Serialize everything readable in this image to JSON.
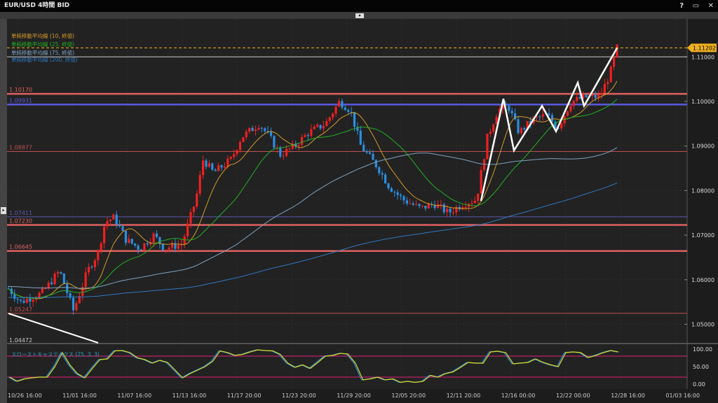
{
  "window": {
    "title": "EUR/USD 4時間 BID",
    "help": "?",
    "maximize": "▭",
    "close": "✕",
    "collapse": "▾",
    "expand": "▸"
  },
  "legend": [
    {
      "label": "単純移動平均線 (10, 終値)",
      "color": "#d49a2a",
      "period": 10
    },
    {
      "label": "単純移動平均線 (25, 終値)",
      "color": "#22b022",
      "period": 25
    },
    {
      "label": "単純移動平均線 (75, 終値)",
      "color": "#7fa2c0",
      "period": 75
    },
    {
      "label": "単純移動平均線 (200, 終値)",
      "color": "#2f78c0",
      "period": 200
    }
  ],
  "chart_data": {
    "type": "candlestick",
    "symbol": "EUR/USD",
    "timeframe": "4時間",
    "side": "BID",
    "y_axis": {
      "range": [
        1.044,
        1.118
      ],
      "ticks": [
        "1.11000",
        "1.10000",
        "1.09000",
        "1.08000",
        "1.07000",
        "1.06000",
        "1.05000"
      ]
    },
    "x_axis": {
      "ticks": [
        "10/26 16:00",
        "11/01 16:00",
        "11/07 16:00",
        "11/13 16:00",
        "11/17 20:00",
        "11/23 20:00",
        "11/29 20:00",
        "12/05 20:00",
        "12/11 20:00",
        "12/16 00:00",
        "12/22 00:00",
        "12/28 16:00",
        "01/03 16:00"
      ]
    },
    "close_path": [
      [
        0,
        1.058
      ],
      [
        0.02,
        1.055
      ],
      [
        0.055,
        1.057
      ],
      [
        0.084,
        1.062
      ],
      [
        0.107,
        1.053
      ],
      [
        0.13,
        1.062
      ],
      [
        0.147,
        1.066
      ],
      [
        0.159,
        1.073
      ],
      [
        0.174,
        1.074
      ],
      [
        0.193,
        1.069
      ],
      [
        0.216,
        1.067
      ],
      [
        0.239,
        1.07
      ],
      [
        0.256,
        1.067
      ],
      [
        0.285,
        1.068
      ],
      [
        0.308,
        1.078
      ],
      [
        0.32,
        1.087
      ],
      [
        0.337,
        1.084
      ],
      [
        0.366,
        1.087
      ],
      [
        0.383,
        1.092
      ],
      [
        0.412,
        1.095
      ],
      [
        0.429,
        1.092
      ],
      [
        0.447,
        1.088
      ],
      [
        0.47,
        1.09
      ],
      [
        0.493,
        1.093
      ],
      [
        0.521,
        1.095
      ],
      [
        0.544,
        1.1
      ],
      [
        0.562,
        1.098
      ],
      [
        0.579,
        1.09
      ],
      [
        0.608,
        1.085
      ],
      [
        0.625,
        1.081
      ],
      [
        0.648,
        1.078
      ],
      [
        0.677,
        1.076
      ],
      [
        0.7,
        1.077
      ],
      [
        0.723,
        1.075
      ],
      [
        0.746,
        1.077
      ],
      [
        0.769,
        1.078
      ],
      [
        0.787,
        1.092
      ],
      [
        0.804,
        1.098
      ],
      [
        0.821,
        1.099
      ],
      [
        0.839,
        1.093
      ],
      [
        0.862,
        1.096
      ],
      [
        0.885,
        1.097
      ],
      [
        0.902,
        1.094
      ],
      [
        0.925,
        1.1
      ],
      [
        0.948,
        1.101
      ],
      [
        0.971,
        1.101
      ],
      [
        0.988,
        1.106
      ],
      [
        1,
        1.112
      ]
    ],
    "current_price": "1.11202",
    "horizontal_lines": [
      {
        "value": "1.11000",
        "color": "#c8c8c8",
        "label_shown": false,
        "weight": "thin"
      },
      {
        "value": "1.10170",
        "color": "#e06060",
        "label_shown": true,
        "weight": "thick"
      },
      {
        "value": "1.09931",
        "color": "#5a5ae0",
        "label_shown": true,
        "weight": "thick"
      },
      {
        "value": "1.08877",
        "color": "#c05050",
        "label_shown": true,
        "weight": "thin"
      },
      {
        "value": "1.07411",
        "color": "#5a5ab0",
        "label_shown": true,
        "weight": "thin"
      },
      {
        "value": "1.07230",
        "color": "#e06060",
        "label_shown": true,
        "weight": "thick"
      },
      {
        "value": "1.06645",
        "color": "#e06060",
        "label_shown": true,
        "weight": "thick"
      },
      {
        "value": "1.05247",
        "color": "#c05050",
        "label_shown": true,
        "weight": "thin"
      }
    ],
    "bottom_label": "1.04472",
    "colors": {
      "up": "#ee2020",
      "down": "#2a8ee0",
      "current": "#f0b020",
      "zigzag": "#ffffff"
    },
    "zigzag_prices": [
      1.0777,
      1.1006,
      1.089,
      1.099,
      1.0933,
      1.1042,
      1.099,
      1.112
    ],
    "stochastic": {
      "label": "スローストキャスティクス (25, 3, 3)",
      "ticks": [
        "100.00",
        "50.00",
        "0.00"
      ],
      "levels": [
        80,
        20
      ],
      "range": [
        0,
        100
      ],
      "values": [
        20,
        8,
        15,
        18,
        20,
        20,
        50,
        90,
        55,
        30,
        18,
        45,
        70,
        72,
        95,
        96,
        90,
        75,
        70,
        60,
        68,
        62,
        40,
        18,
        30,
        40,
        50,
        65,
        95,
        90,
        82,
        85,
        92,
        98,
        96,
        95,
        85,
        60,
        48,
        55,
        45,
        62,
        80,
        82,
        88,
        86,
        60,
        12,
        15,
        20,
        12,
        15,
        5,
        8,
        5,
        8,
        25,
        20,
        30,
        35,
        48,
        62,
        60,
        60,
        92,
        94,
        90,
        58,
        60,
        62,
        72,
        62,
        55,
        50,
        90,
        92,
        90,
        76,
        82,
        90,
        96,
        92
      ]
    }
  }
}
